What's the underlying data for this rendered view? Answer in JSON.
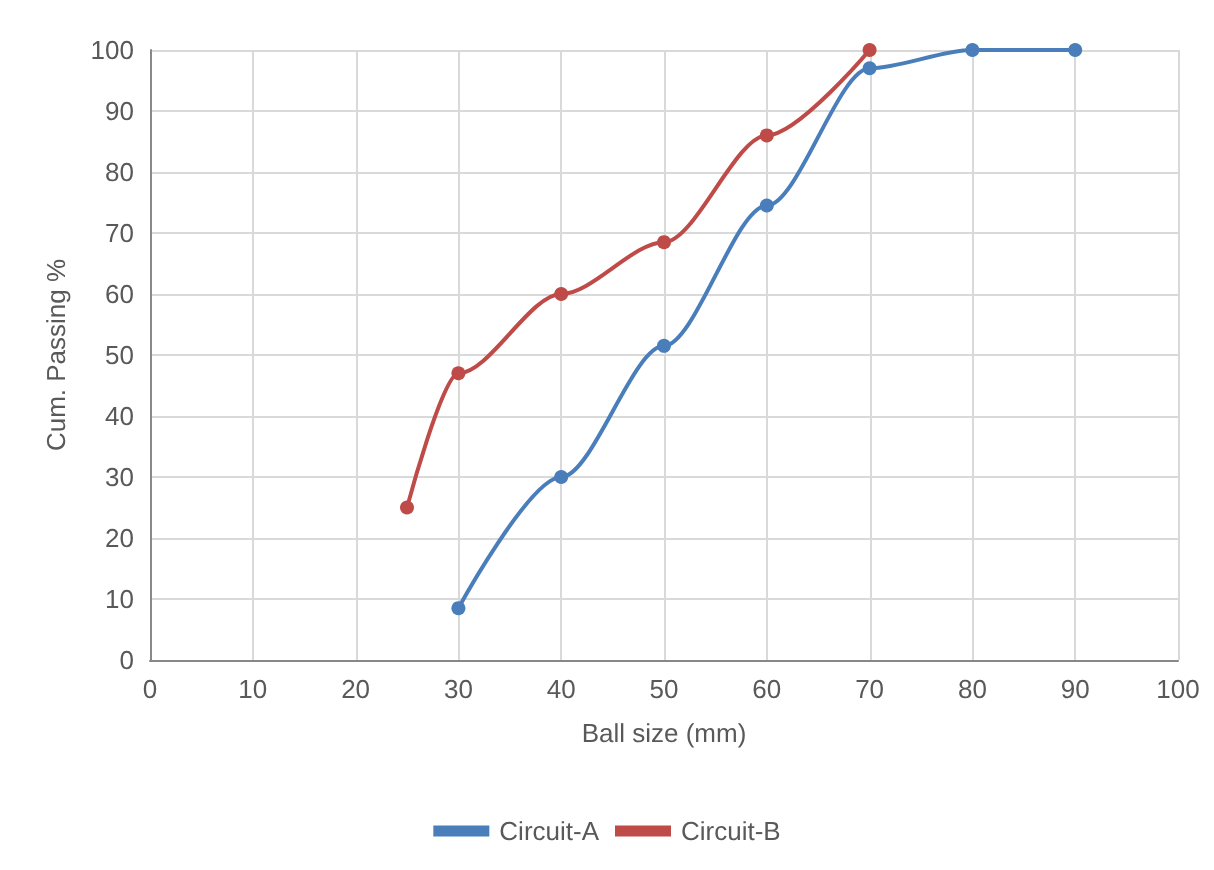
{
  "chart_data": {
    "type": "line",
    "xlabel": "Ball size (mm)",
    "ylabel": "Cum. Passing %",
    "xlim": [
      0,
      100
    ],
    "xticks": [
      0,
      10,
      20,
      30,
      40,
      50,
      60,
      70,
      80,
      90,
      100
    ],
    "ylim": [
      0,
      100
    ],
    "yticks": [
      0,
      10,
      20,
      30,
      40,
      50,
      60,
      70,
      80,
      90,
      100
    ],
    "grid": true,
    "legend": "bottom",
    "marker": "circle",
    "line_style": "solid",
    "series": [
      {
        "name": "Circuit-A",
        "color": "#4a7ebb",
        "x": [
          30,
          40,
          50,
          60,
          70,
          80,
          90
        ],
        "values": [
          8.5,
          30,
          51.5,
          74.5,
          97,
          100,
          100
        ]
      },
      {
        "name": "Circuit-B",
        "color": "#be4b48",
        "x": [
          25,
          30,
          40,
          50,
          60,
          70
        ],
        "values": [
          25,
          47,
          60,
          68.5,
          86,
          100
        ]
      }
    ]
  }
}
